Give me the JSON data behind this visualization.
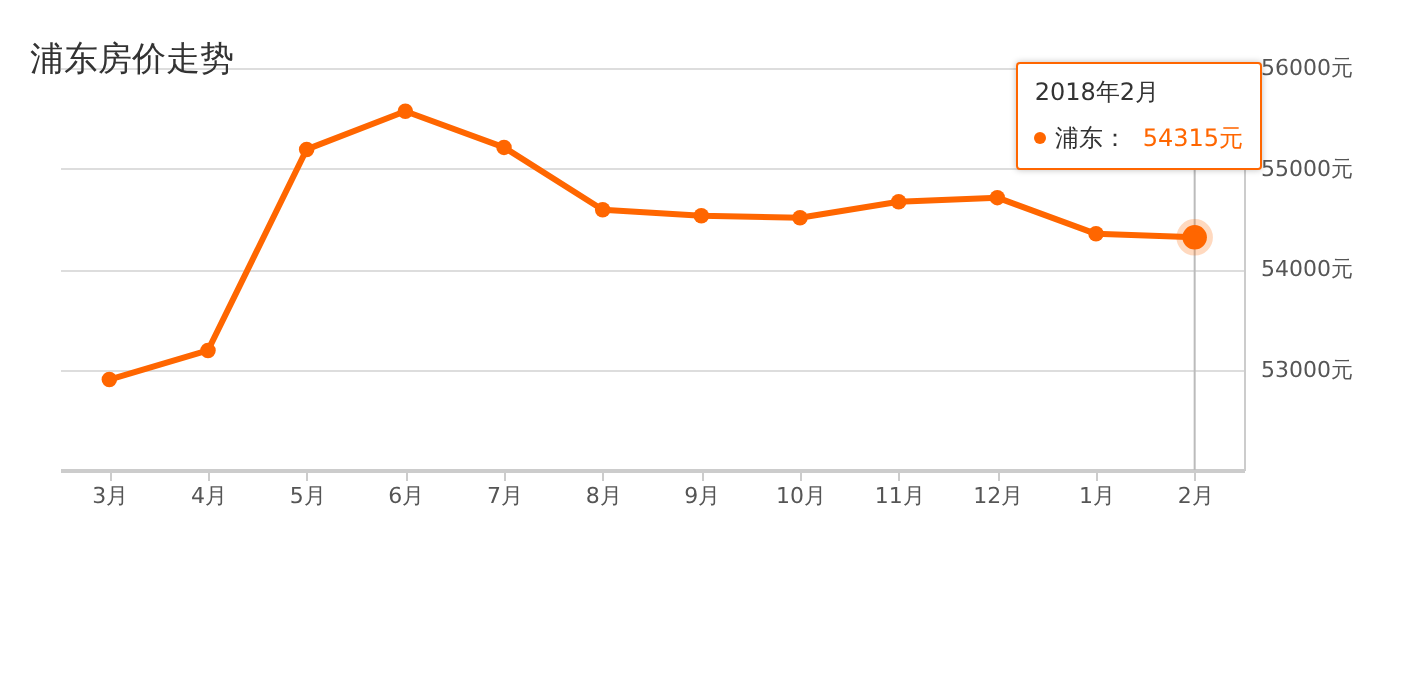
{
  "chart_data": {
    "type": "line",
    "title": "浦东房价走势",
    "categories": [
      "3月",
      "4月",
      "5月",
      "6月",
      "7月",
      "8月",
      "9月",
      "10月",
      "11月",
      "12月",
      "1月",
      "2月"
    ],
    "series": [
      {
        "name": "浦东：",
        "color": "#ff6600",
        "values": [
          52900,
          53190,
          55190,
          55570,
          55210,
          54590,
          54530,
          54510,
          54670,
          54710,
          54350,
          54315
        ],
        "value_labels": [
          null,
          null,
          null,
          null,
          null,
          null,
          null,
          null,
          null,
          null,
          null,
          "54315元"
        ]
      }
    ],
    "ylim": [
      52000,
      56000
    ],
    "yticks": [
      {
        "value": 53000,
        "label": "53000元"
      },
      {
        "value": 54000,
        "label": "54000元"
      },
      {
        "value": 55000,
        "label": "55000元"
      },
      {
        "value": 56000,
        "label": "56000元"
      }
    ],
    "grid": "y",
    "marker": "circle",
    "line_style": "solid",
    "legend": "top right",
    "ref_lines": [
      {
        "axis": "x",
        "value": "2月",
        "color": "#bbbbbb"
      }
    ],
    "annotations": [
      "2018年2月"
    ]
  }
}
